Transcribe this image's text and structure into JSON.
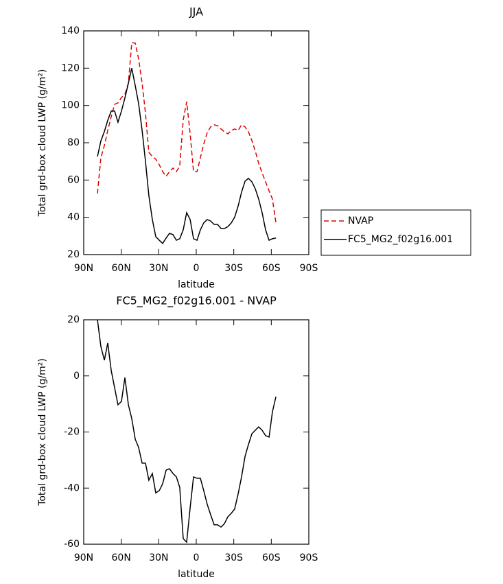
{
  "chart_data": [
    {
      "type": "line",
      "title": "JJA",
      "xlabel": "latitude",
      "ylabel": "Total grd-box cloud LWP (g/m²)",
      "x": [
        79.0,
        76.3,
        73.5,
        70.8,
        68.0,
        65.3,
        62.6,
        59.8,
        57.1,
        54.3,
        51.6,
        48.8,
        46.1,
        43.3,
        40.6,
        37.9,
        35.1,
        32.4,
        29.6,
        26.9,
        24.1,
        21.4,
        18.6,
        15.9,
        13.2,
        10.4,
        7.7,
        4.9,
        2.2,
        -0.6,
        -3.3,
        -6.0,
        -8.8,
        -11.5,
        -14.3,
        -17.0,
        -19.8,
        -22.5,
        -25.3,
        -28.0,
        -30.7,
        -33.5,
        -36.2,
        -39.0,
        -41.7,
        -44.5,
        -47.2,
        -49.9,
        -52.7,
        -55.4,
        -58.2,
        -60.9,
        -63.7
      ],
      "series": [
        {
          "name": "NVAP",
          "color": "#e00000",
          "style": "dashed",
          "values": [
            52.8,
            71.9,
            78.5,
            86.6,
            94,
            100.6,
            101.4,
            104.3,
            106,
            112,
            133.7,
            133.4,
            125,
            112,
            95.8,
            74.9,
            72.6,
            71.2,
            68.2,
            64.5,
            62,
            64.5,
            66.4,
            64.5,
            67.5,
            92.2,
            102,
            84.8,
            64.5,
            64.5,
            71.9,
            79.3,
            85.5,
            88.5,
            89.6,
            89.2,
            87.4,
            85.9,
            84.8,
            86.6,
            87.4,
            86.6,
            89.6,
            88.5,
            85.9,
            81.1,
            75.6,
            69,
            63.8,
            59,
            54.2,
            49.8,
            37
          ]
        },
        {
          "name": "FC5_MG2_f02g16.001",
          "color": "#000000",
          "style": "solid",
          "values": [
            72.6,
            81,
            86,
            92,
            97,
            97,
            91,
            97,
            104,
            112,
            120,
            110.6,
            101,
            86.6,
            70,
            51.7,
            38.8,
            29.6,
            27.7,
            26,
            28.9,
            31.4,
            30.7,
            27.7,
            28.5,
            33.3,
            42.5,
            38.8,
            28.5,
            27.7,
            33.3,
            37,
            38.8,
            38,
            36.2,
            36.2,
            34,
            34,
            35,
            37,
            40,
            46,
            53.5,
            59.4,
            60.9,
            59,
            55.3,
            49.8,
            42.5,
            33.3,
            27.7,
            28.5,
            28.9
          ]
        }
      ],
      "xlim": [
        90,
        -90
      ],
      "xticks": [
        {
          "value": 90,
          "label": "90N"
        },
        {
          "value": 60,
          "label": "60N"
        },
        {
          "value": 30,
          "label": "30N"
        },
        0,
        {
          "value": -30,
          "label": "30S"
        },
        {
          "value": -60,
          "label": "60S"
        },
        {
          "value": -90,
          "label": "90S"
        }
      ],
      "ylim": [
        20,
        140
      ],
      "yticks": [
        20,
        40,
        60,
        80,
        100,
        120,
        140
      ],
      "legend": "right"
    },
    {
      "type": "line",
      "title": "FC5_MG2_f02g16.001 - NVAP",
      "xlabel": "latitude",
      "ylabel": "Total grd-box cloud LWP (g/m²)",
      "x": [
        79.0,
        76.3,
        73.5,
        70.8,
        68.0,
        65.3,
        62.6,
        59.8,
        57.1,
        54.3,
        51.6,
        48.8,
        46.1,
        43.3,
        40.6,
        37.9,
        35.1,
        32.4,
        29.6,
        26.9,
        24.1,
        21.4,
        18.6,
        15.9,
        13.2,
        10.4,
        7.7,
        4.9,
        2.2,
        -0.6,
        -3.3,
        -6.0,
        -8.8,
        -11.5,
        -14.3,
        -17.0,
        -19.8,
        -22.5,
        -25.3,
        -28.0,
        -30.7,
        -33.5,
        -36.2,
        -39.0,
        -41.7,
        -44.5,
        -47.2,
        -49.9,
        -52.7,
        -55.4,
        -58.2,
        -60.9,
        -63.7
      ],
      "series": [
        {
          "color": "#000000",
          "style": "solid",
          "values": [
            20,
            10.5,
            5.6,
            11.7,
            1.9,
            -4.2,
            -10.3,
            -9.1,
            -0.6,
            -10.3,
            -15.2,
            -22.6,
            -25.5,
            -31.1,
            -31.1,
            -37.2,
            -34.8,
            -41.7,
            -40.9,
            -38.5,
            -33.6,
            -33.1,
            -34.8,
            -36,
            -39.7,
            -58,
            -59.3,
            -47,
            -36,
            -36.5,
            -36.5,
            -40.9,
            -45.8,
            -49.5,
            -53.1,
            -53.1,
            -53.9,
            -52.7,
            -50.2,
            -49,
            -47.5,
            -42.1,
            -36,
            -28.7,
            -24.5,
            -20.6,
            -19.4,
            -18.2,
            -19.4,
            -21.3,
            -21.8,
            -12.8,
            -7.4
          ]
        }
      ],
      "xlim": [
        90,
        -90
      ],
      "xticks": [
        {
          "value": 90,
          "label": "90N"
        },
        {
          "value": 60,
          "label": "60N"
        },
        {
          "value": 30,
          "label": "30N"
        },
        0,
        {
          "value": -30,
          "label": "30S"
        },
        {
          "value": -60,
          "label": "60S"
        },
        {
          "value": -90,
          "label": "90S"
        }
      ],
      "ylim": [
        -60,
        20
      ],
      "yticks": [
        -60,
        -40,
        -20,
        0,
        20
      ]
    }
  ]
}
